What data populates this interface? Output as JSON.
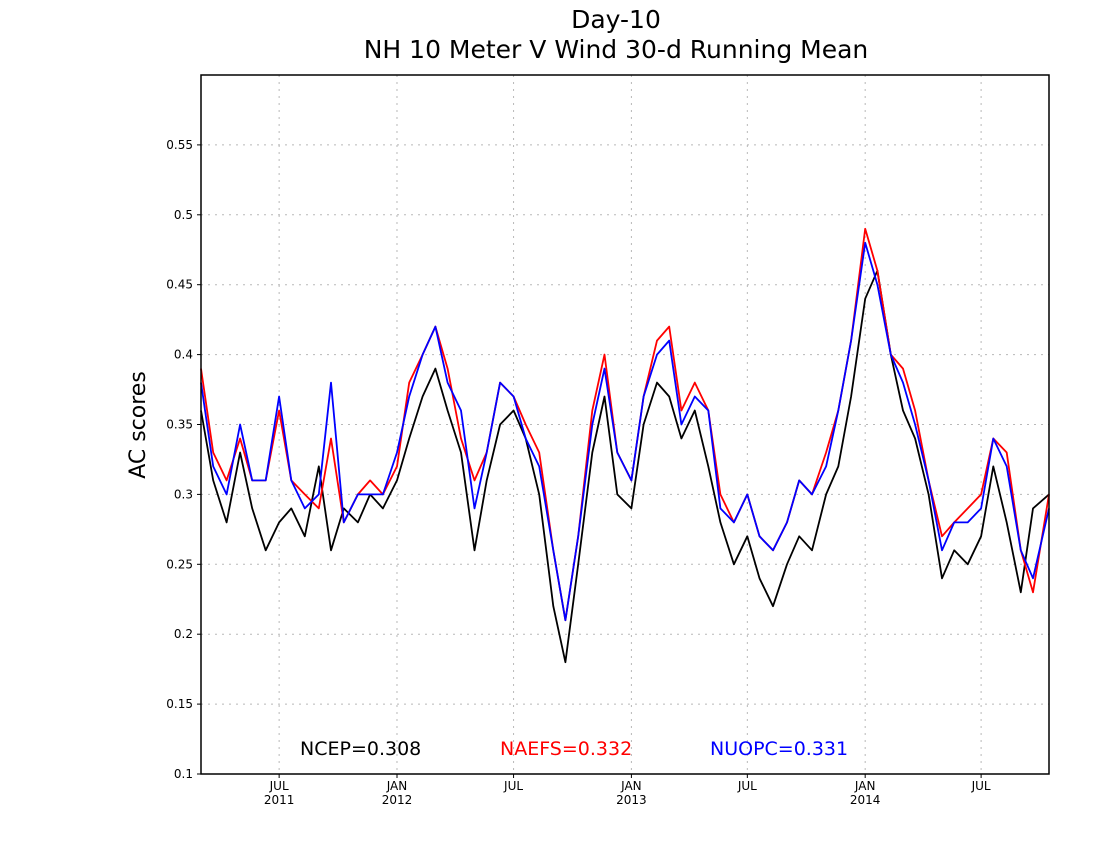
{
  "chart_data": {
    "type": "line",
    "title": "Day-10",
    "subtitle": "NH 10 Meter V Wind 30-d Running Mean",
    "ylabel": "AC scores",
    "xlabel": "",
    "ylim": [
      0.1,
      0.6
    ],
    "xlim": [
      "2011-03-01",
      "2014-10-15"
    ],
    "grid": true,
    "yticks": [
      0.1,
      0.15,
      0.2,
      0.25,
      0.3,
      0.35,
      0.4,
      0.45,
      0.5,
      0.55
    ],
    "ytick_labels": [
      "0.1",
      "0.15",
      "0.2",
      "0.25",
      "0.3",
      "0.35",
      "0.4",
      "0.45",
      "0.5",
      "0.55"
    ],
    "xticks": [
      {
        "date": "2011-07-01",
        "month": "JUL",
        "year": "2011"
      },
      {
        "date": "2012-01-01",
        "month": "JAN",
        "year": "2012"
      },
      {
        "date": "2012-07-01",
        "month": "JUL",
        "year": ""
      },
      {
        "date": "2013-01-01",
        "month": "JAN",
        "year": "2013"
      },
      {
        "date": "2013-07-01",
        "month": "JUL",
        "year": ""
      },
      {
        "date": "2014-01-01",
        "month": "JAN",
        "year": "2014"
      },
      {
        "date": "2014-07-01",
        "month": "JUL",
        "year": ""
      }
    ],
    "legend_position": "bottom",
    "x": [
      "2011-03-01",
      "2011-03-20",
      "2011-04-10",
      "2011-05-01",
      "2011-05-20",
      "2011-06-10",
      "2011-07-01",
      "2011-07-20",
      "2011-08-10",
      "2011-09-01",
      "2011-09-20",
      "2011-10-10",
      "2011-11-01",
      "2011-11-20",
      "2011-12-10",
      "2012-01-01",
      "2012-01-20",
      "2012-02-10",
      "2012-03-01",
      "2012-03-20",
      "2012-04-10",
      "2012-05-01",
      "2012-05-20",
      "2012-06-10",
      "2012-07-01",
      "2012-07-20",
      "2012-08-10",
      "2012-09-01",
      "2012-09-20",
      "2012-10-10",
      "2012-11-01",
      "2012-11-20",
      "2012-12-10",
      "2013-01-01",
      "2013-01-20",
      "2013-02-10",
      "2013-03-01",
      "2013-03-20",
      "2013-04-10",
      "2013-05-01",
      "2013-05-20",
      "2013-06-10",
      "2013-07-01",
      "2013-07-20",
      "2013-08-10",
      "2013-09-01",
      "2013-09-20",
      "2013-10-10",
      "2013-11-01",
      "2013-11-20",
      "2013-12-10",
      "2014-01-01",
      "2014-01-20",
      "2014-02-10",
      "2014-03-01",
      "2014-03-20",
      "2014-04-10",
      "2014-05-01",
      "2014-05-20",
      "2014-06-10",
      "2014-07-01",
      "2014-07-20",
      "2014-08-10",
      "2014-09-01",
      "2014-09-20",
      "2014-10-15"
    ],
    "series": [
      {
        "name": "NCEP",
        "legend_label": "NCEP=0.308",
        "color": "#000000",
        "values": [
          0.36,
          0.31,
          0.28,
          0.33,
          0.29,
          0.26,
          0.28,
          0.29,
          0.27,
          0.32,
          0.26,
          0.29,
          0.28,
          0.3,
          0.29,
          0.31,
          0.34,
          0.37,
          0.39,
          0.36,
          0.33,
          0.26,
          0.31,
          0.35,
          0.36,
          0.34,
          0.3,
          0.22,
          0.18,
          0.25,
          0.33,
          0.37,
          0.3,
          0.29,
          0.35,
          0.38,
          0.37,
          0.34,
          0.36,
          0.32,
          0.28,
          0.25,
          0.27,
          0.24,
          0.22,
          0.25,
          0.27,
          0.26,
          0.3,
          0.32,
          0.37,
          0.44,
          0.46,
          0.4,
          0.36,
          0.34,
          0.3,
          0.24,
          0.26,
          0.25,
          0.27,
          0.32,
          0.28,
          0.23,
          0.29,
          0.3
        ]
      },
      {
        "name": "NAEFS",
        "legend_label": "NAEFS=0.332",
        "color": "#ff0000",
        "values": [
          0.39,
          0.33,
          0.31,
          0.34,
          0.31,
          0.31,
          0.36,
          0.31,
          0.3,
          0.29,
          0.34,
          0.28,
          0.3,
          0.31,
          0.3,
          0.32,
          0.38,
          0.4,
          0.42,
          0.39,
          0.34,
          0.31,
          0.33,
          0.38,
          0.37,
          0.35,
          0.33,
          0.26,
          0.21,
          0.27,
          0.36,
          0.4,
          0.33,
          0.31,
          0.37,
          0.41,
          0.42,
          0.36,
          0.38,
          0.36,
          0.3,
          0.28,
          0.3,
          0.27,
          0.26,
          0.28,
          0.31,
          0.3,
          0.33,
          0.36,
          0.41,
          0.49,
          0.46,
          0.4,
          0.39,
          0.36,
          0.31,
          0.27,
          0.28,
          0.29,
          0.3,
          0.34,
          0.33,
          0.26,
          0.23,
          0.3
        ]
      },
      {
        "name": "NUOPC",
        "legend_label": "NUOPC=0.331",
        "color": "#0000ff",
        "values": [
          0.38,
          0.32,
          0.3,
          0.35,
          0.31,
          0.31,
          0.37,
          0.31,
          0.29,
          0.3,
          0.38,
          0.28,
          0.3,
          0.3,
          0.3,
          0.33,
          0.37,
          0.4,
          0.42,
          0.38,
          0.36,
          0.29,
          0.33,
          0.38,
          0.37,
          0.34,
          0.32,
          0.26,
          0.21,
          0.27,
          0.35,
          0.39,
          0.33,
          0.31,
          0.37,
          0.4,
          0.41,
          0.35,
          0.37,
          0.36,
          0.29,
          0.28,
          0.3,
          0.27,
          0.26,
          0.28,
          0.31,
          0.3,
          0.32,
          0.36,
          0.41,
          0.48,
          0.45,
          0.4,
          0.38,
          0.35,
          0.31,
          0.26,
          0.28,
          0.28,
          0.29,
          0.34,
          0.32,
          0.26,
          0.24,
          0.29
        ]
      }
    ]
  }
}
